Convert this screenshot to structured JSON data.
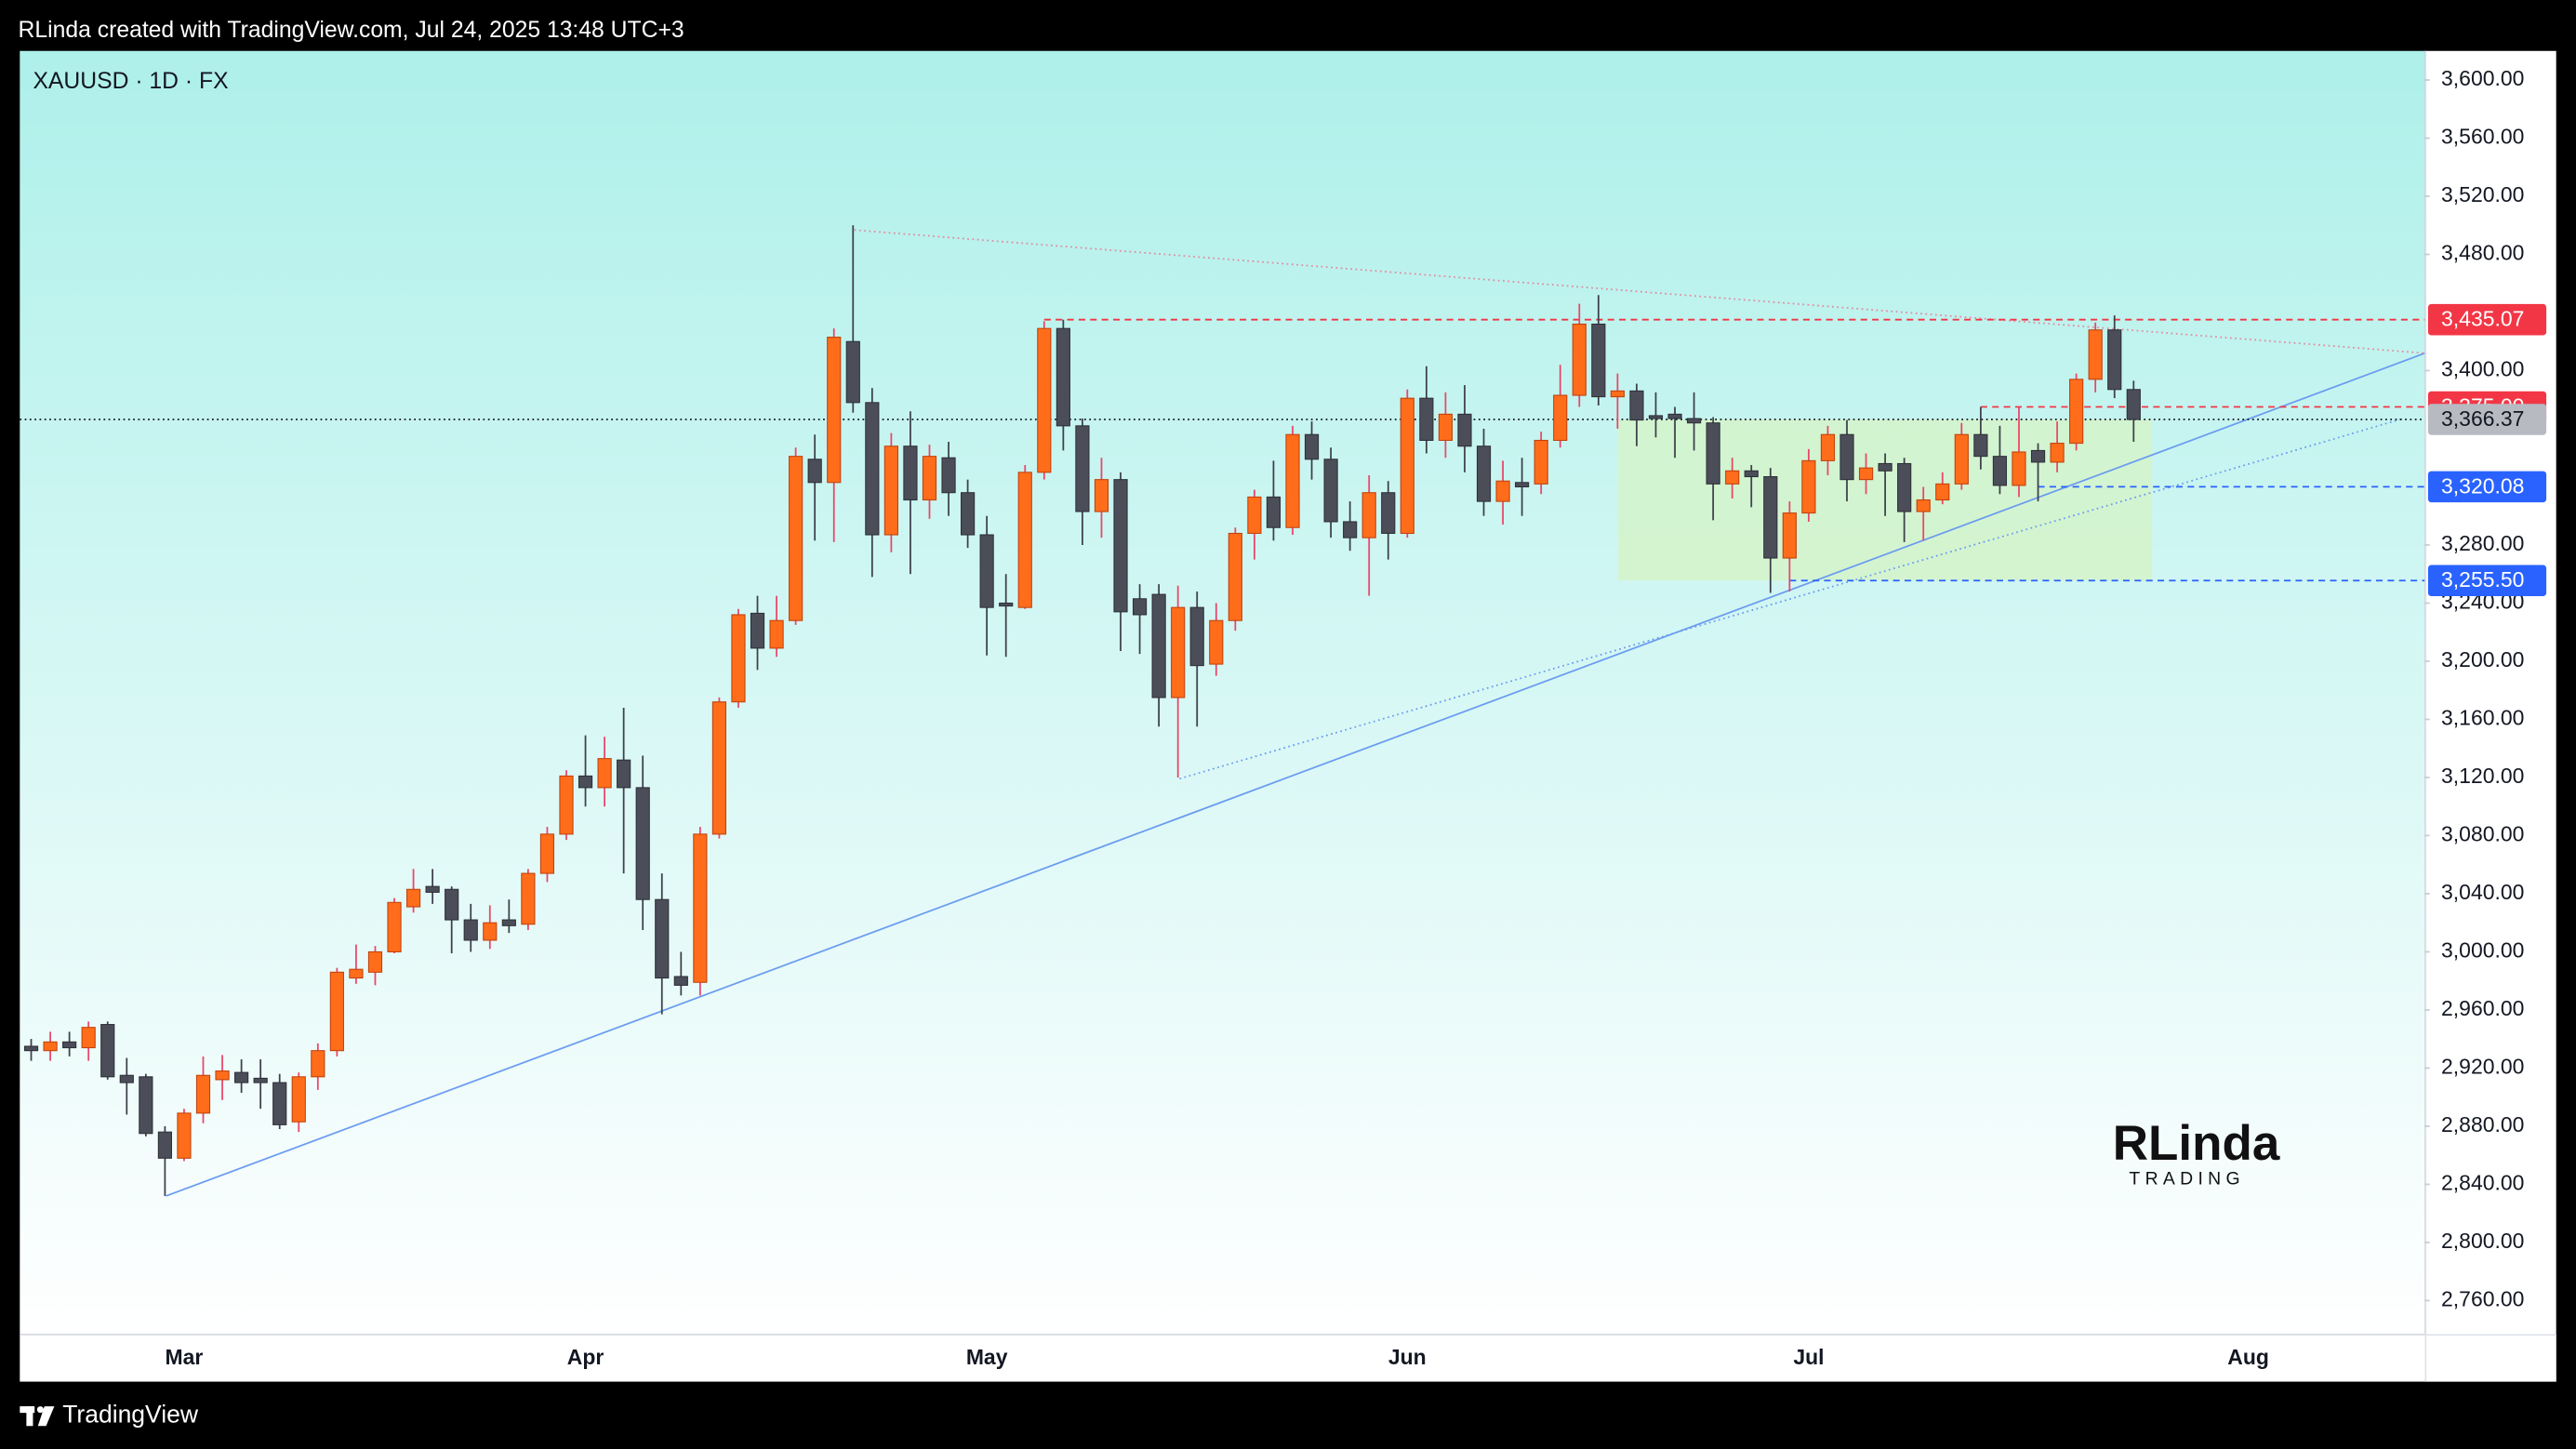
{
  "header": {
    "credit": "RLinda created with TradingView.com, Jul 24, 2025 13:48 UTC+3"
  },
  "footer": {
    "brand": "TradingView"
  },
  "watermark": {
    "name": "RLinda",
    "tagline": "TRADING"
  },
  "chart_data": {
    "type": "candlestick",
    "title": "XAUUSD · 1D · FX",
    "up_color": "#ff6d1a",
    "down_color": "#4b4e59",
    "up_wick_color": "#e8476a",
    "down_wick_color": "#3e414b",
    "categories": [
      null,
      null,
      null,
      null,
      null,
      null,
      null,
      null,
      "Mar",
      null,
      null,
      null,
      null,
      null,
      null,
      null,
      null,
      null,
      null,
      null,
      null,
      null,
      null,
      null,
      null,
      null,
      null,
      null,
      null,
      "Apr",
      null,
      null,
      null,
      null,
      null,
      null,
      null,
      null,
      null,
      null,
      null,
      null,
      null,
      null,
      null,
      null,
      null,
      null,
      null,
      null,
      "May",
      null,
      null,
      null,
      null,
      null,
      null,
      null,
      null,
      null,
      null,
      null,
      null,
      null,
      null,
      null,
      null,
      null,
      null,
      null,
      null,
      null,
      "Jun",
      null,
      null,
      null,
      null,
      null,
      null,
      null,
      null,
      null,
      null,
      null,
      null,
      null,
      null,
      null,
      null,
      null,
      null,
      null,
      null,
      "Jul",
      null,
      null,
      null,
      null,
      null,
      null,
      null,
      null,
      null,
      null,
      null,
      null,
      null,
      null,
      null,
      null,
      null,
      null,
      null,
      null,
      null,
      null,
      "Aug",
      null,
      null,
      null,
      null,
      null,
      null,
      null,
      null,
      null
    ],
    "open": [
      2935,
      2932,
      2938,
      2934,
      2950,
      2915,
      2914,
      2876,
      2858,
      2889,
      2912,
      2917,
      2913,
      2910,
      2883,
      2914,
      2932,
      2982,
      2986,
      3000,
      3031,
      3045,
      3043,
      3022,
      3008,
      3022,
      3019,
      3054,
      3081,
      3121,
      3113,
      3132,
      3113,
      3036,
      2983,
      2979,
      3081,
      3172,
      3233,
      3209,
      3228,
      3339,
      3323,
      3420,
      3378,
      3287,
      3348,
      3311,
      3340,
      3316,
      3287,
      3240,
      3237,
      3330,
      3429,
      3362,
      3303,
      3325,
      3243,
      3246,
      3175,
      3237,
      3198,
      3228,
      3288,
      3313,
      3292,
      3356,
      3339,
      3296,
      3285,
      3316,
      3288,
      3381,
      3352,
      3370,
      3348,
      3310,
      3323,
      3322,
      3352,
      3383,
      3432,
      3382,
      3386,
      3369,
      3370,
      3367,
      3364,
      3322,
      3331,
      3327,
      3271,
      3302,
      3338,
      3356,
      3325,
      3336,
      3336,
      3303,
      3311,
      3322,
      3356,
      3341,
      3321,
      3345,
      3337,
      3350,
      3394,
      3428,
      3387,
      null,
      null,
      null,
      null,
      null,
      null,
      null,
      null,
      null,
      null,
      null,
      null,
      null,
      null,
      null
    ],
    "high": [
      2940,
      2945,
      2945,
      2952,
      2952,
      2927,
      2916,
      2880,
      2892,
      2928,
      2929,
      2926,
      2926,
      2916,
      2917,
      2937,
      2989,
      3005,
      3004,
      3037,
      3057,
      3057,
      3045,
      3033,
      3032,
      3036,
      3057,
      3086,
      3125,
      3149,
      3148,
      3168,
      3135,
      3054,
      3000,
      3086,
      3175,
      3236,
      3245,
      3245,
      3347,
      3356,
      3429,
      3500,
      3388,
      3357,
      3372,
      3349,
      3351,
      3325,
      3300,
      3260,
      3335,
      3434,
      3435,
      3367,
      3340,
      3330,
      3253,
      3253,
      3252,
      3248,
      3240,
      3292,
      3318,
      3338,
      3362,
      3365,
      3347,
      3310,
      3328,
      3324,
      3387,
      3403,
      3385,
      3390,
      3360,
      3338,
      3340,
      3358,
      3404,
      3446,
      3452,
      3398,
      3391,
      3385,
      3375,
      3385,
      3368,
      3340,
      3335,
      3333,
      3310,
      3346,
      3362,
      3366,
      3343,
      3343,
      3340,
      3320,
      3330,
      3364,
      3375,
      3362,
      3375,
      3350,
      3365,
      3398,
      3433,
      3438,
      3393,
      null,
      null,
      null,
      null,
      null,
      null,
      null,
      null,
      null,
      null,
      null,
      null,
      null,
      null,
      null
    ],
    "low": [
      2925,
      2925,
      2928,
      2925,
      2912,
      2888,
      2873,
      2832,
      2856,
      2882,
      2898,
      2903,
      2892,
      2878,
      2876,
      2905,
      2928,
      2978,
      2977,
      2999,
      3027,
      3033,
      2999,
      3000,
      3002,
      3013,
      3015,
      3048,
      3077,
      3100,
      3100,
      3054,
      3015,
      2957,
      2970,
      2970,
      3078,
      3168,
      3194,
      3203,
      3225,
      3283,
      3282,
      3371,
      3258,
      3275,
      3260,
      3298,
      3300,
      3278,
      3204,
      3203,
      3236,
      3325,
      3345,
      3280,
      3285,
      3207,
      3205,
      3155,
      3120,
      3155,
      3190,
      3221,
      3270,
      3283,
      3287,
      3325,
      3285,
      3276,
      3245,
      3270,
      3285,
      3343,
      3340,
      3330,
      3300,
      3294,
      3300,
      3315,
      3347,
      3375,
      3376,
      3360,
      3348,
      3354,
      3340,
      3345,
      3297,
      3312,
      3306,
      3247,
      3248,
      3296,
      3328,
      3310,
      3315,
      3300,
      3282,
      3283,
      3308,
      3318,
      3332,
      3315,
      3313,
      3310,
      3330,
      3345,
      3385,
      3381,
      3351,
      null,
      null,
      null,
      null,
      null,
      null,
      null,
      null,
      null,
      null,
      null,
      null,
      null,
      null,
      null
    ],
    "close": [
      2932,
      2938,
      2934,
      2948,
      2914,
      2910,
      2875,
      2858,
      2889,
      2915,
      2918,
      2910,
      2910,
      2881,
      2914,
      2932,
      2986,
      2988,
      3000,
      3034,
      3043,
      3041,
      3022,
      3008,
      3020,
      3018,
      3054,
      3081,
      3121,
      3113,
      3133,
      3113,
      3036,
      2982,
      2977,
      3081,
      3172,
      3232,
      3209,
      3228,
      3341,
      3323,
      3423,
      3378,
      3287,
      3348,
      3311,
      3341,
      3316,
      3287,
      3237,
      3238,
      3330,
      3429,
      3362,
      3303,
      3325,
      3234,
      3232,
      3175,
      3237,
      3197,
      3228,
      3288,
      3313,
      3292,
      3356,
      3339,
      3296,
      3285,
      3316,
      3288,
      3381,
      3352,
      3370,
      3348,
      3310,
      3324,
      3320,
      3352,
      3383,
      3432,
      3382,
      3386,
      3366,
      3367,
      3367,
      3364,
      3322,
      3331,
      3327,
      3271,
      3302,
      3338,
      3356,
      3325,
      3333,
      3331,
      3303,
      3311,
      3322,
      3356,
      3341,
      3321,
      3344,
      3337,
      3350,
      3394,
      3428,
      3387,
      3366.37,
      null,
      null,
      null,
      null,
      null,
      null,
      null,
      null,
      null,
      null,
      null,
      null,
      null,
      null,
      null
    ],
    "ylim": [
      2737,
      3620
    ],
    "yticks": [
      {
        "value": 3600,
        "label": "3,600.00"
      },
      {
        "value": 3560,
        "label": "3,560.00"
      },
      {
        "value": 3520,
        "label": "3,520.00"
      },
      {
        "value": 3480,
        "label": "3,480.00"
      },
      {
        "value": 3400,
        "label": "3,400.00"
      },
      {
        "value": 3280,
        "label": "3,280.00"
      },
      {
        "value": 3240,
        "label": "3,240.00"
      },
      {
        "value": 3200,
        "label": "3,200.00"
      },
      {
        "value": 3160,
        "label": "3,160.00"
      },
      {
        "value": 3120,
        "label": "3,120.00"
      },
      {
        "value": 3080,
        "label": "3,080.00"
      },
      {
        "value": 3040,
        "label": "3,040.00"
      },
      {
        "value": 3000,
        "label": "3,000.00"
      },
      {
        "value": 2960,
        "label": "2,960.00"
      },
      {
        "value": 2920,
        "label": "2,920.00"
      },
      {
        "value": 2880,
        "label": "2,880.00"
      },
      {
        "value": 2840,
        "label": "2,840.00"
      },
      {
        "value": 2800,
        "label": "2,800.00"
      },
      {
        "value": 2760,
        "label": "2,760.00"
      }
    ],
    "grid": false,
    "price_lines": [
      {
        "value": 3435.07,
        "label": "3,435.07",
        "color": "#f23645",
        "text_color": "#ffffff",
        "style": "dashed"
      },
      {
        "value": 3375.0,
        "label": "3,375.00",
        "color": "#f23645",
        "text_color": "#ffffff",
        "style": "dashed"
      },
      {
        "value": 3366.37,
        "label": "3,366.37",
        "color": "#b8bac2",
        "text_color": "#131722",
        "style": "dotted"
      },
      {
        "value": 3320.08,
        "label": "3,320.08",
        "color": "#2962ff",
        "text_color": "#ffffff",
        "style": "dashed"
      },
      {
        "value": 3255.5,
        "label": "3,255.50",
        "color": "#2962ff",
        "text_color": "#ffffff",
        "style": "dashed"
      }
    ]
  }
}
